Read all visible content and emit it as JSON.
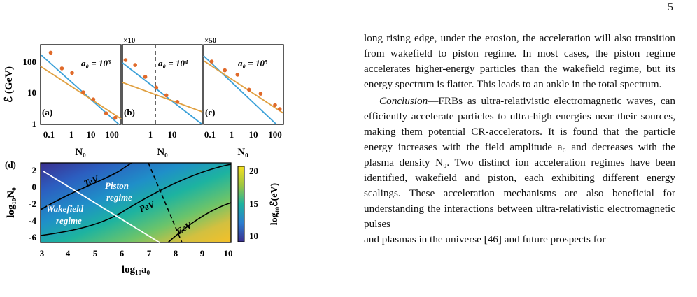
{
  "page_number": "5",
  "paragraph1": "long rising edge, under the erosion, the acceleration will also transition from wakefield to piston regime. In most cases, the piston regime accelerates higher-energy particles than the wakefield regime, but its energy spectrum is flatter. This leads to an ankle in the total spectrum.",
  "conclusion_label": "Conclusion",
  "paragraph2": "—FRBs as ultra-relativistic electromagnetic waves, can efficiently accelerate particles to ultra-high energies near their sources, making them potential CR-accelerators. It is found that the particle energy increases with the field amplitude a₀ and decreases with the plasma density N₀. Two distinct ion acceleration regimes have been identified, wakefield and piston, each exhibiting different energy scalings. These acceleration mechanisms are also beneficial for understanding the interactions between ultra-relativistic electromagnetic pulses",
  "paragraph3_partial": "and plasmas in the universe [46] and future prospects for",
  "colors": {
    "wakefield_line": "#3aa0d8",
    "piston_line": "#e0a040",
    "dots": "#e06a2a"
  },
  "figure": {
    "top_panels": [
      {
        "label": "(a)",
        "annotation": "a₀ = 10³",
        "multiplier": "",
        "ylabel": "ℰ (GeV)",
        "xlabel": "N₀",
        "x_ticks": [
          "0.1",
          "1",
          "10",
          "100"
        ],
        "y_ticks": [
          "1",
          "10",
          "100"
        ],
        "dashed_vertical": false
      },
      {
        "label": "(b)",
        "annotation": "a₀ = 10⁴",
        "multiplier": "×10",
        "ylabel": "",
        "xlabel": "N₀",
        "x_ticks": [
          "1",
          "10"
        ],
        "y_ticks": [],
        "dashed_vertical": true
      },
      {
        "label": "(c)",
        "annotation": "a₀ = 10⁵",
        "multiplier": "×50",
        "ylabel": "",
        "xlabel": "N₀",
        "x_ticks": [
          "0.1",
          "1",
          "10",
          "100"
        ],
        "y_ticks": [],
        "dashed_vertical": false
      }
    ],
    "bottom_panel": {
      "label": "(d)",
      "xlabel": "log₁₀a₀",
      "ylabel": "log₁₀N₀",
      "colorbar_label": "log₁₀ℰ(eV)",
      "x_ticks": [
        "3",
        "4",
        "5",
        "6",
        "7",
        "8",
        "9",
        "10"
      ],
      "y_ticks": [
        "2",
        "0",
        "-2",
        "-4",
        "-6"
      ],
      "colorbar_ticks": [
        "20",
        "15",
        "10"
      ],
      "region_labels": [
        "TeV",
        "PeV",
        "EeV"
      ],
      "regime_labels": {
        "piston": "Piston regime",
        "wakefield": "Wakefield regime"
      }
    }
  },
  "chart_data": [
    {
      "type": "scatter",
      "title": "",
      "xlabel": "N₀",
      "ylabel": "ℰ (GeV)",
      "xscale": "log",
      "yscale": "log",
      "xlim": [
        0.05,
        300
      ],
      "ylim": [
        1,
        300
      ],
      "series": [
        {
          "points": [
            [
              0.15,
              170
            ],
            [
              0.5,
              55
            ],
            [
              1.5,
              40
            ],
            [
              5,
              10
            ],
            [
              15,
              6
            ],
            [
              60,
              2.2
            ],
            [
              160,
              1.6
            ]
          ]
        }
      ],
      "fits": [
        {
          "color": "wakefield",
          "from": [
            0.05,
            300
          ],
          "to": [
            200,
            1.3
          ]
        },
        {
          "color": "piston",
          "from": [
            0.05,
            70
          ],
          "to": [
            300,
            1.8
          ]
        }
      ]
    },
    {
      "type": "scatter",
      "title": "",
      "xlabel": "N₀",
      "ylabel": "",
      "xscale": "log",
      "yscale": "log",
      "series": [
        {
          "points": [
            [
              0.07,
              100
            ],
            [
              0.2,
              70
            ],
            [
              0.6,
              30
            ],
            [
              2,
              14
            ],
            [
              6,
              8
            ],
            [
              20,
              5
            ]
          ]
        }
      ]
    },
    {
      "type": "scatter",
      "title": "",
      "xlabel": "N₀",
      "ylabel": "",
      "xscale": "log",
      "yscale": "log",
      "series": [
        {
          "points": [
            [
              0.12,
              90
            ],
            [
              0.5,
              48
            ],
            [
              2,
              35
            ],
            [
              7,
              12
            ],
            [
              25,
              9
            ],
            [
              120,
              4
            ],
            [
              200,
              3
            ]
          ]
        }
      ]
    }
  ]
}
